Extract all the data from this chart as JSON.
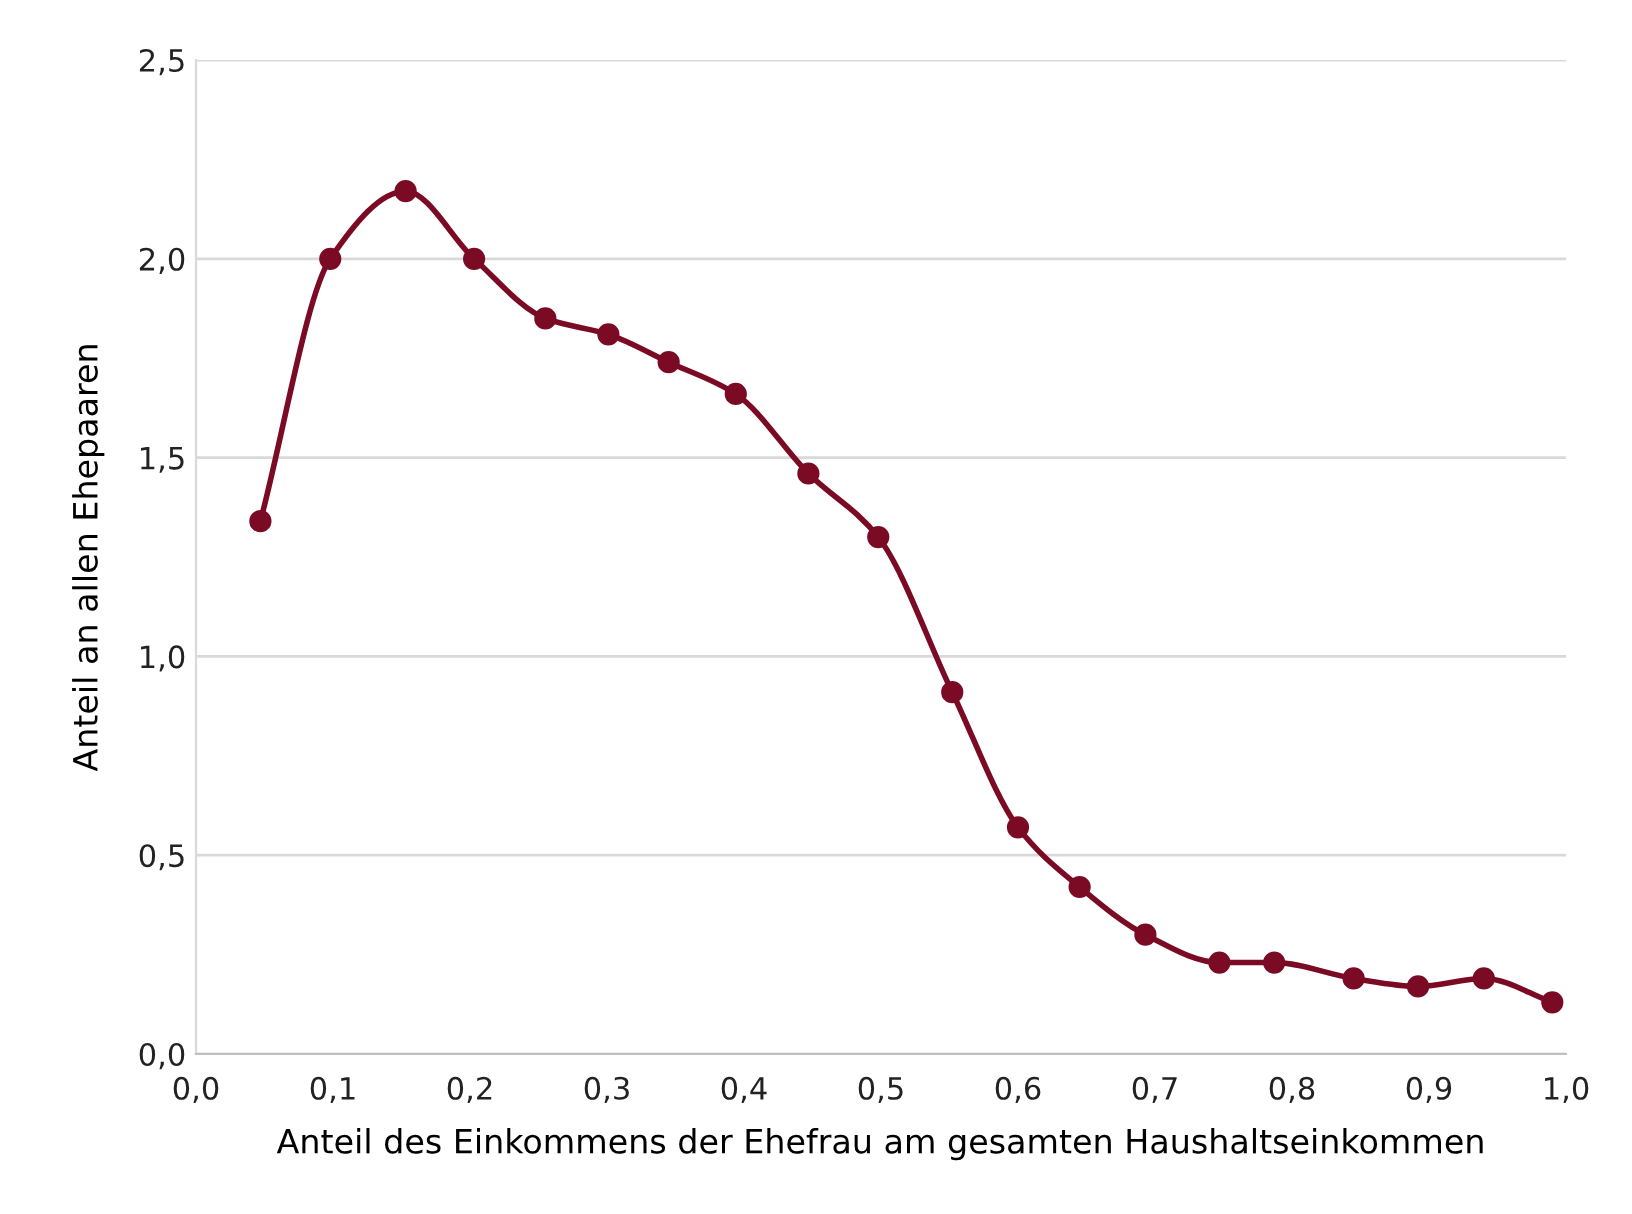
{
  "chart_data": {
    "type": "line",
    "xlabel": "Anteil des Einkommens der Ehefrau am gesamten Haushaltseinkommen",
    "ylabel": "Anteil an allen Ehepaaren",
    "x": [
      0.047,
      0.098,
      0.153,
      0.203,
      0.255,
      0.301,
      0.345,
      0.394,
      0.447,
      0.498,
      0.552,
      0.6,
      0.645,
      0.693,
      0.747,
      0.787,
      0.845,
      0.892,
      0.94,
      0.99
    ],
    "series": [
      {
        "color": "#7b0a24",
        "values": [
          1.34,
          2.0,
          2.17,
          2.0,
          1.85,
          1.81,
          1.74,
          1.66,
          1.46,
          1.3,
          0.91,
          0.57,
          0.42,
          0.3,
          0.23,
          0.23,
          0.19,
          0.17,
          0.19,
          0.13
        ]
      }
    ],
    "xlim": [
      0,
      1
    ],
    "ylim": [
      0,
      2.5
    ],
    "xticks": [
      {
        "value": 0,
        "label": "0,0"
      },
      {
        "value": 0.1,
        "label": "0,1"
      },
      {
        "value": 0.2,
        "label": "0,2"
      },
      {
        "value": 0.3,
        "label": "0,3"
      },
      {
        "value": 0.4,
        "label": "0,4"
      },
      {
        "value": 0.5,
        "label": "0,5"
      },
      {
        "value": 0.6,
        "label": "0,6"
      },
      {
        "value": 0.7,
        "label": "0,7"
      },
      {
        "value": 0.8,
        "label": "0,8"
      },
      {
        "value": 0.9,
        "label": "0,9"
      },
      {
        "value": 1,
        "label": "1,0"
      }
    ],
    "yticks": [
      {
        "value": 0,
        "label": "0,0"
      },
      {
        "value": 0.5,
        "label": "0,5"
      },
      {
        "value": 1,
        "label": "1,0"
      },
      {
        "value": 1.5,
        "label": "1,5"
      },
      {
        "value": 2,
        "label": "2,0"
      },
      {
        "value": 2.5,
        "label": "2,5"
      }
    ],
    "grid": "y",
    "marker": "circle",
    "line_style": "solid"
  }
}
